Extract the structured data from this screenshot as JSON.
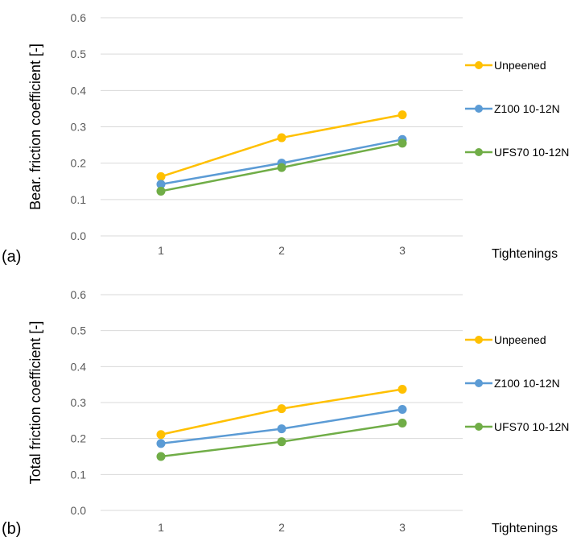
{
  "chart_data": [
    {
      "type": "line",
      "panel_label": "(a)",
      "xlabel": "Tightenings",
      "ylabel": "Bear. friction coefficient [-]",
      "categories": [
        "1",
        "2",
        "3"
      ],
      "ylim": [
        0.0,
        0.6
      ],
      "yticks": [
        "0.0",
        "0.1",
        "0.2",
        "0.3",
        "0.4",
        "0.5",
        "0.6"
      ],
      "grid": true,
      "legend_position": "right",
      "series": [
        {
          "name": "Unpeened",
          "color": "#FFC000",
          "values": [
            0.163,
            0.27,
            0.333
          ]
        },
        {
          "name": "Z100 10-12N",
          "color": "#5B9BD5",
          "values": [
            0.142,
            0.2,
            0.265
          ]
        },
        {
          "name": "UFS70 10-12N",
          "color": "#70AD47",
          "values": [
            0.123,
            0.188,
            0.255
          ]
        }
      ]
    },
    {
      "type": "line",
      "panel_label": "(b)",
      "xlabel": "Tightenings",
      "ylabel": "Total friction coefficient [-]",
      "categories": [
        "1",
        "2",
        "3"
      ],
      "ylim": [
        0.0,
        0.6
      ],
      "yticks": [
        "0.0",
        "0.1",
        "0.2",
        "0.3",
        "0.4",
        "0.5",
        "0.6"
      ],
      "grid": true,
      "legend_position": "right",
      "series": [
        {
          "name": "Unpeened",
          "color": "#FFC000",
          "values": [
            0.211,
            0.283,
            0.337
          ]
        },
        {
          "name": "Z100 10-12N",
          "color": "#5B9BD5",
          "values": [
            0.186,
            0.227,
            0.281
          ]
        },
        {
          "name": "UFS70 10-12N",
          "color": "#70AD47",
          "values": [
            0.15,
            0.191,
            0.243
          ]
        }
      ]
    }
  ]
}
